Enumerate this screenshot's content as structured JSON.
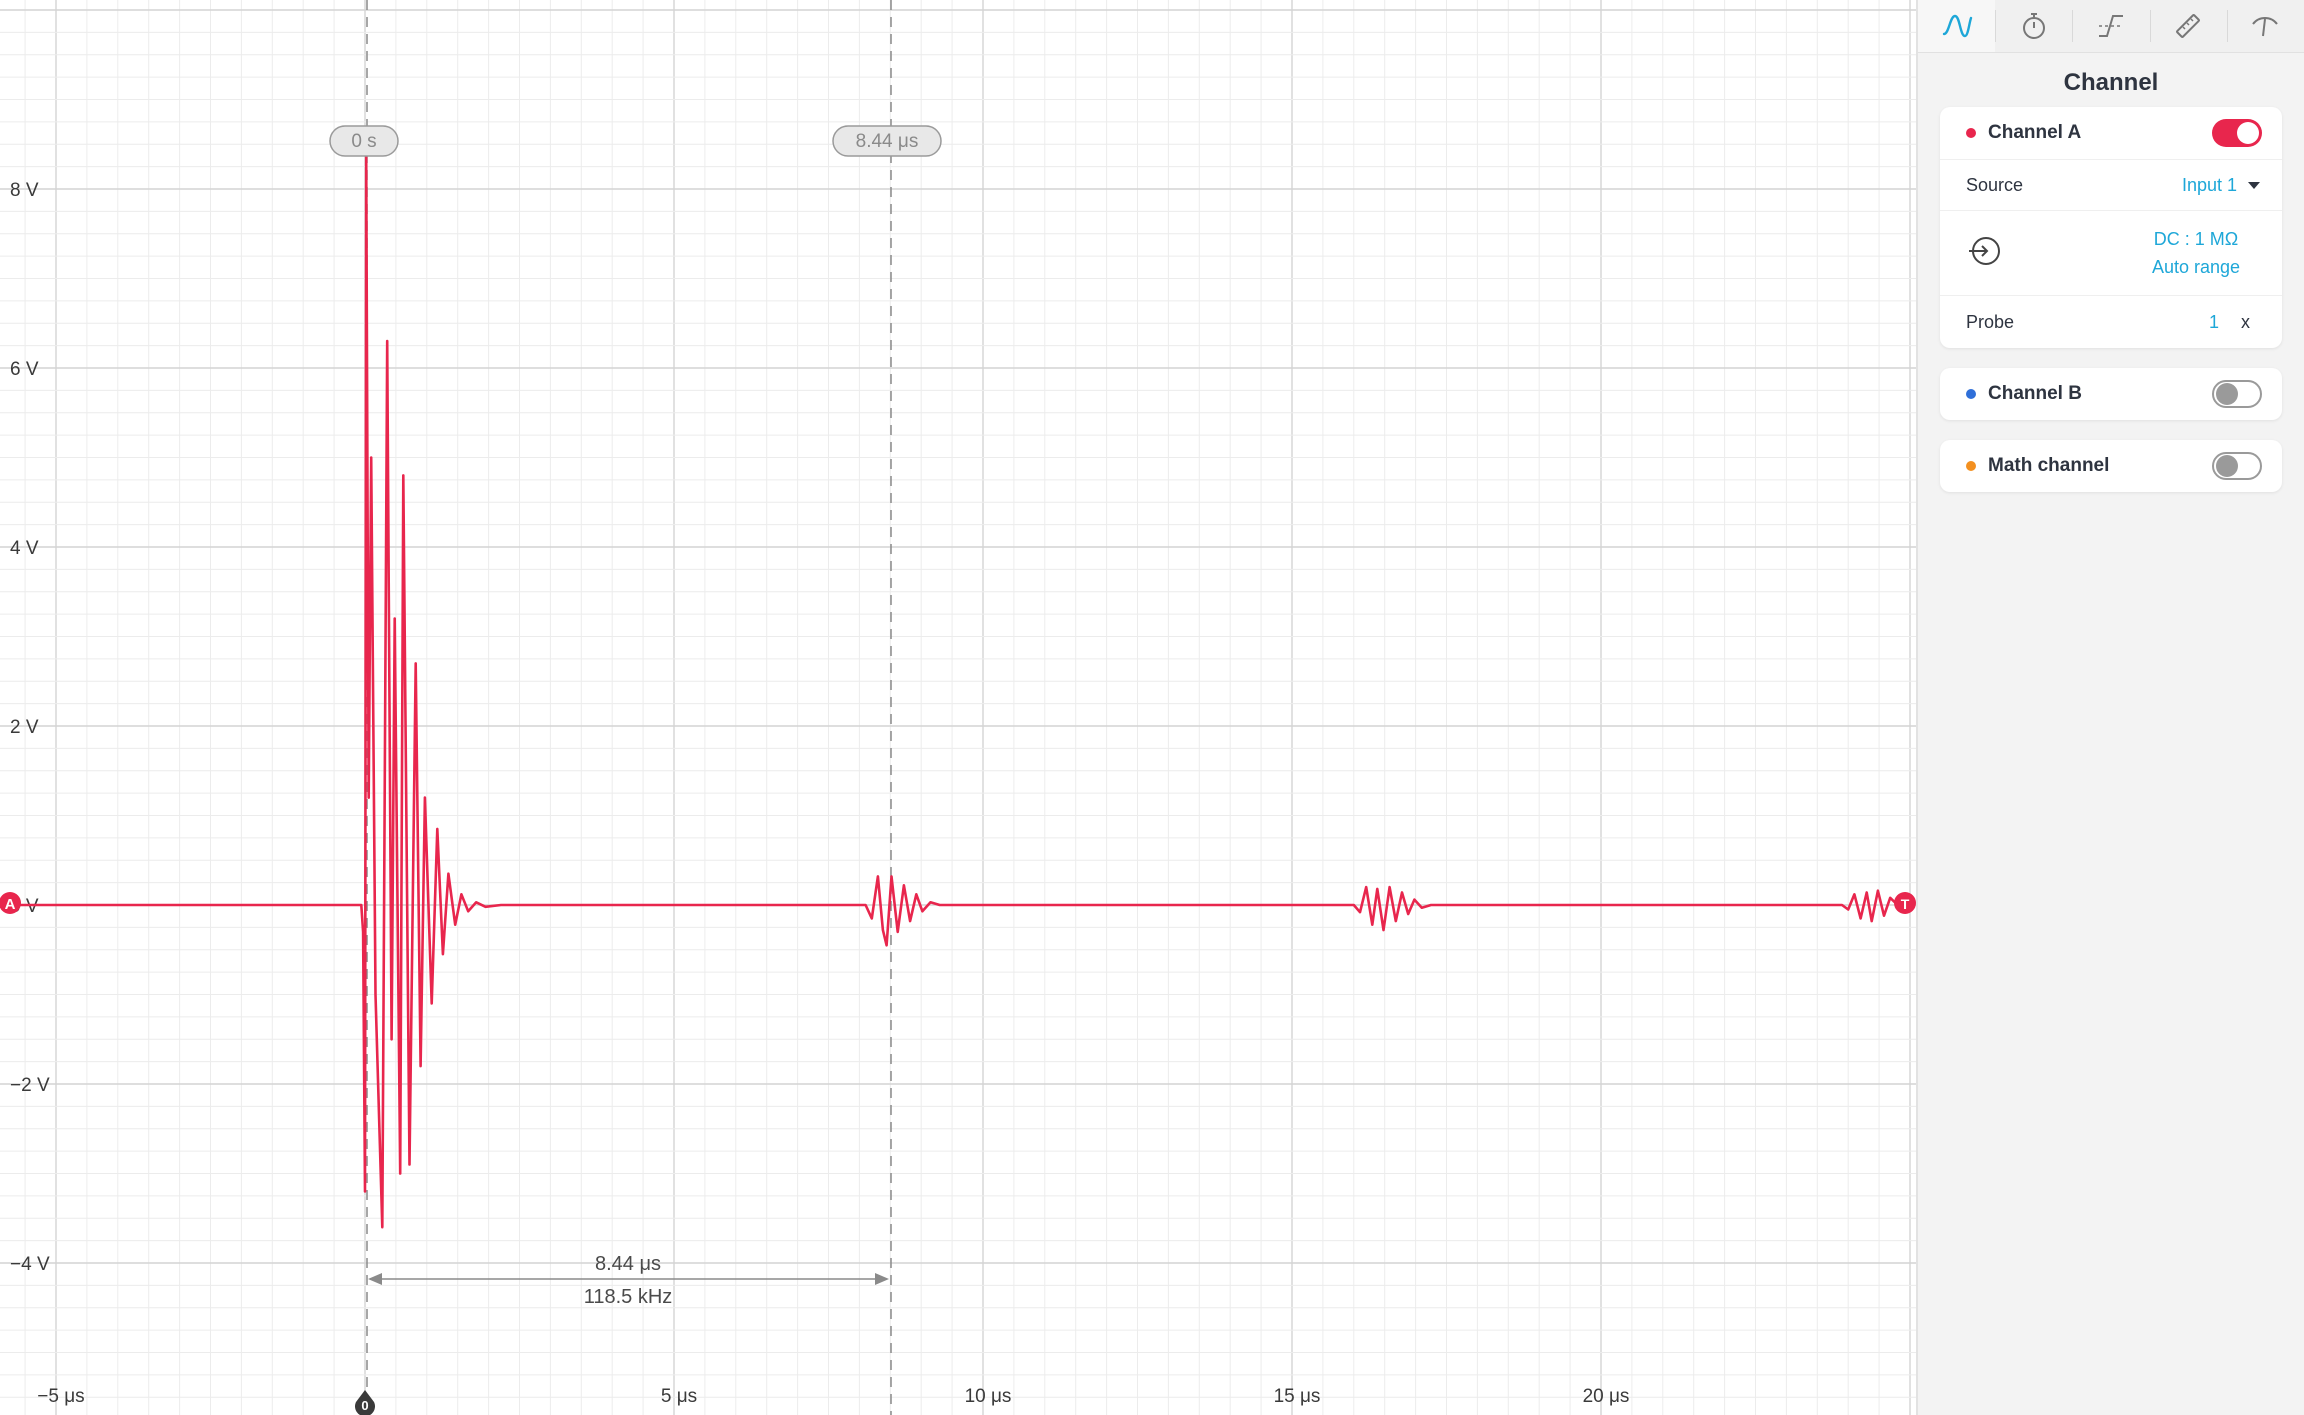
{
  "scope": {
    "y_labels": [
      "8 V",
      "6 V",
      "4 V",
      "2 V",
      "0 V",
      "−2 V",
      "−4 V"
    ],
    "x_labels": [
      "−5 μs",
      "5 μs",
      "10 μs",
      "15 μs",
      "20 μs"
    ],
    "cursor_left_label": "0 s",
    "cursor_right_label": "8.44 μs",
    "measure_time": "8.44 μs",
    "measure_freq": "118.5 kHz",
    "channel_marker": "A",
    "trigger_marker": "T",
    "trigger_time_marker": "0",
    "trace_color": "#e8264d"
  },
  "chart_data": {
    "type": "line",
    "xlabel": "",
    "ylabel": "",
    "x_unit": "μs",
    "y_unit": "V",
    "xlim": [
      -5.8,
      24.9
    ],
    "ylim": [
      -5.4,
      10.0
    ],
    "x_ticks": [
      -5,
      0,
      5,
      10,
      15,
      20
    ],
    "y_ticks": [
      -4,
      -2,
      0,
      2,
      4,
      6,
      8
    ],
    "grid": true,
    "series": [
      {
        "color": "#e8264d",
        "points": [
          [
            -5.8,
            0
          ],
          [
            -0.06,
            0
          ],
          [
            -0.03,
            -0.3
          ],
          [
            0,
            -3.2
          ],
          [
            0.02,
            8.4
          ],
          [
            0.06,
            1.2
          ],
          [
            0.1,
            5.0
          ],
          [
            0.17,
            -1.0
          ],
          [
            0.28,
            -3.6
          ],
          [
            0.36,
            6.3
          ],
          [
            0.43,
            -1.5
          ],
          [
            0.48,
            3.2
          ],
          [
            0.57,
            -3.0
          ],
          [
            0.62,
            4.8
          ],
          [
            0.72,
            -2.9
          ],
          [
            0.82,
            2.7
          ],
          [
            0.9,
            -1.8
          ],
          [
            0.97,
            1.2
          ],
          [
            1.08,
            -1.1
          ],
          [
            1.17,
            0.85
          ],
          [
            1.26,
            -0.55
          ],
          [
            1.35,
            0.35
          ],
          [
            1.46,
            -0.22
          ],
          [
            1.56,
            0.12
          ],
          [
            1.67,
            -0.07
          ],
          [
            1.8,
            0.03
          ],
          [
            1.95,
            -0.02
          ],
          [
            2.2,
            0
          ],
          [
            8.1,
            0
          ],
          [
            8.2,
            -0.15
          ],
          [
            8.3,
            0.32
          ],
          [
            8.38,
            -0.28
          ],
          [
            8.44,
            -0.45
          ],
          [
            8.52,
            0.32
          ],
          [
            8.62,
            -0.3
          ],
          [
            8.72,
            0.22
          ],
          [
            8.82,
            -0.18
          ],
          [
            8.92,
            0.12
          ],
          [
            9.02,
            -0.07
          ],
          [
            9.15,
            0.03
          ],
          [
            9.3,
            0
          ],
          [
            16.0,
            0
          ],
          [
            16.1,
            -0.08
          ],
          [
            16.2,
            0.2
          ],
          [
            16.3,
            -0.22
          ],
          [
            16.38,
            0.18
          ],
          [
            16.48,
            -0.28
          ],
          [
            16.58,
            0.2
          ],
          [
            16.68,
            -0.18
          ],
          [
            16.78,
            0.14
          ],
          [
            16.88,
            -0.1
          ],
          [
            16.98,
            0.06
          ],
          [
            17.1,
            -0.03
          ],
          [
            17.25,
            0
          ],
          [
            23.9,
            0
          ],
          [
            24.0,
            -0.05
          ],
          [
            24.1,
            0.12
          ],
          [
            24.2,
            -0.15
          ],
          [
            24.3,
            0.14
          ],
          [
            24.38,
            -0.18
          ],
          [
            24.48,
            0.16
          ],
          [
            24.58,
            -0.12
          ],
          [
            24.68,
            0.08
          ],
          [
            24.8,
            0
          ]
        ]
      }
    ]
  },
  "panel": {
    "title": "Channel",
    "tabs": [
      "waveform-tab",
      "timebase-tab",
      "trigger-tab",
      "measure-tab",
      "probe-tab"
    ],
    "channel_a": {
      "label": "Channel A",
      "color": "#e8264d",
      "enabled": true,
      "source_label": "Source",
      "source_value": "Input 1",
      "coupling": "DC : 1 MΩ",
      "range": "Auto range",
      "probe_label": "Probe",
      "probe_value": "1",
      "probe_unit": "x"
    },
    "channel_b": {
      "label": "Channel B",
      "color": "#2f6fd8",
      "enabled": false
    },
    "math_channel": {
      "label": "Math channel",
      "color": "#f39020",
      "enabled": false
    }
  }
}
